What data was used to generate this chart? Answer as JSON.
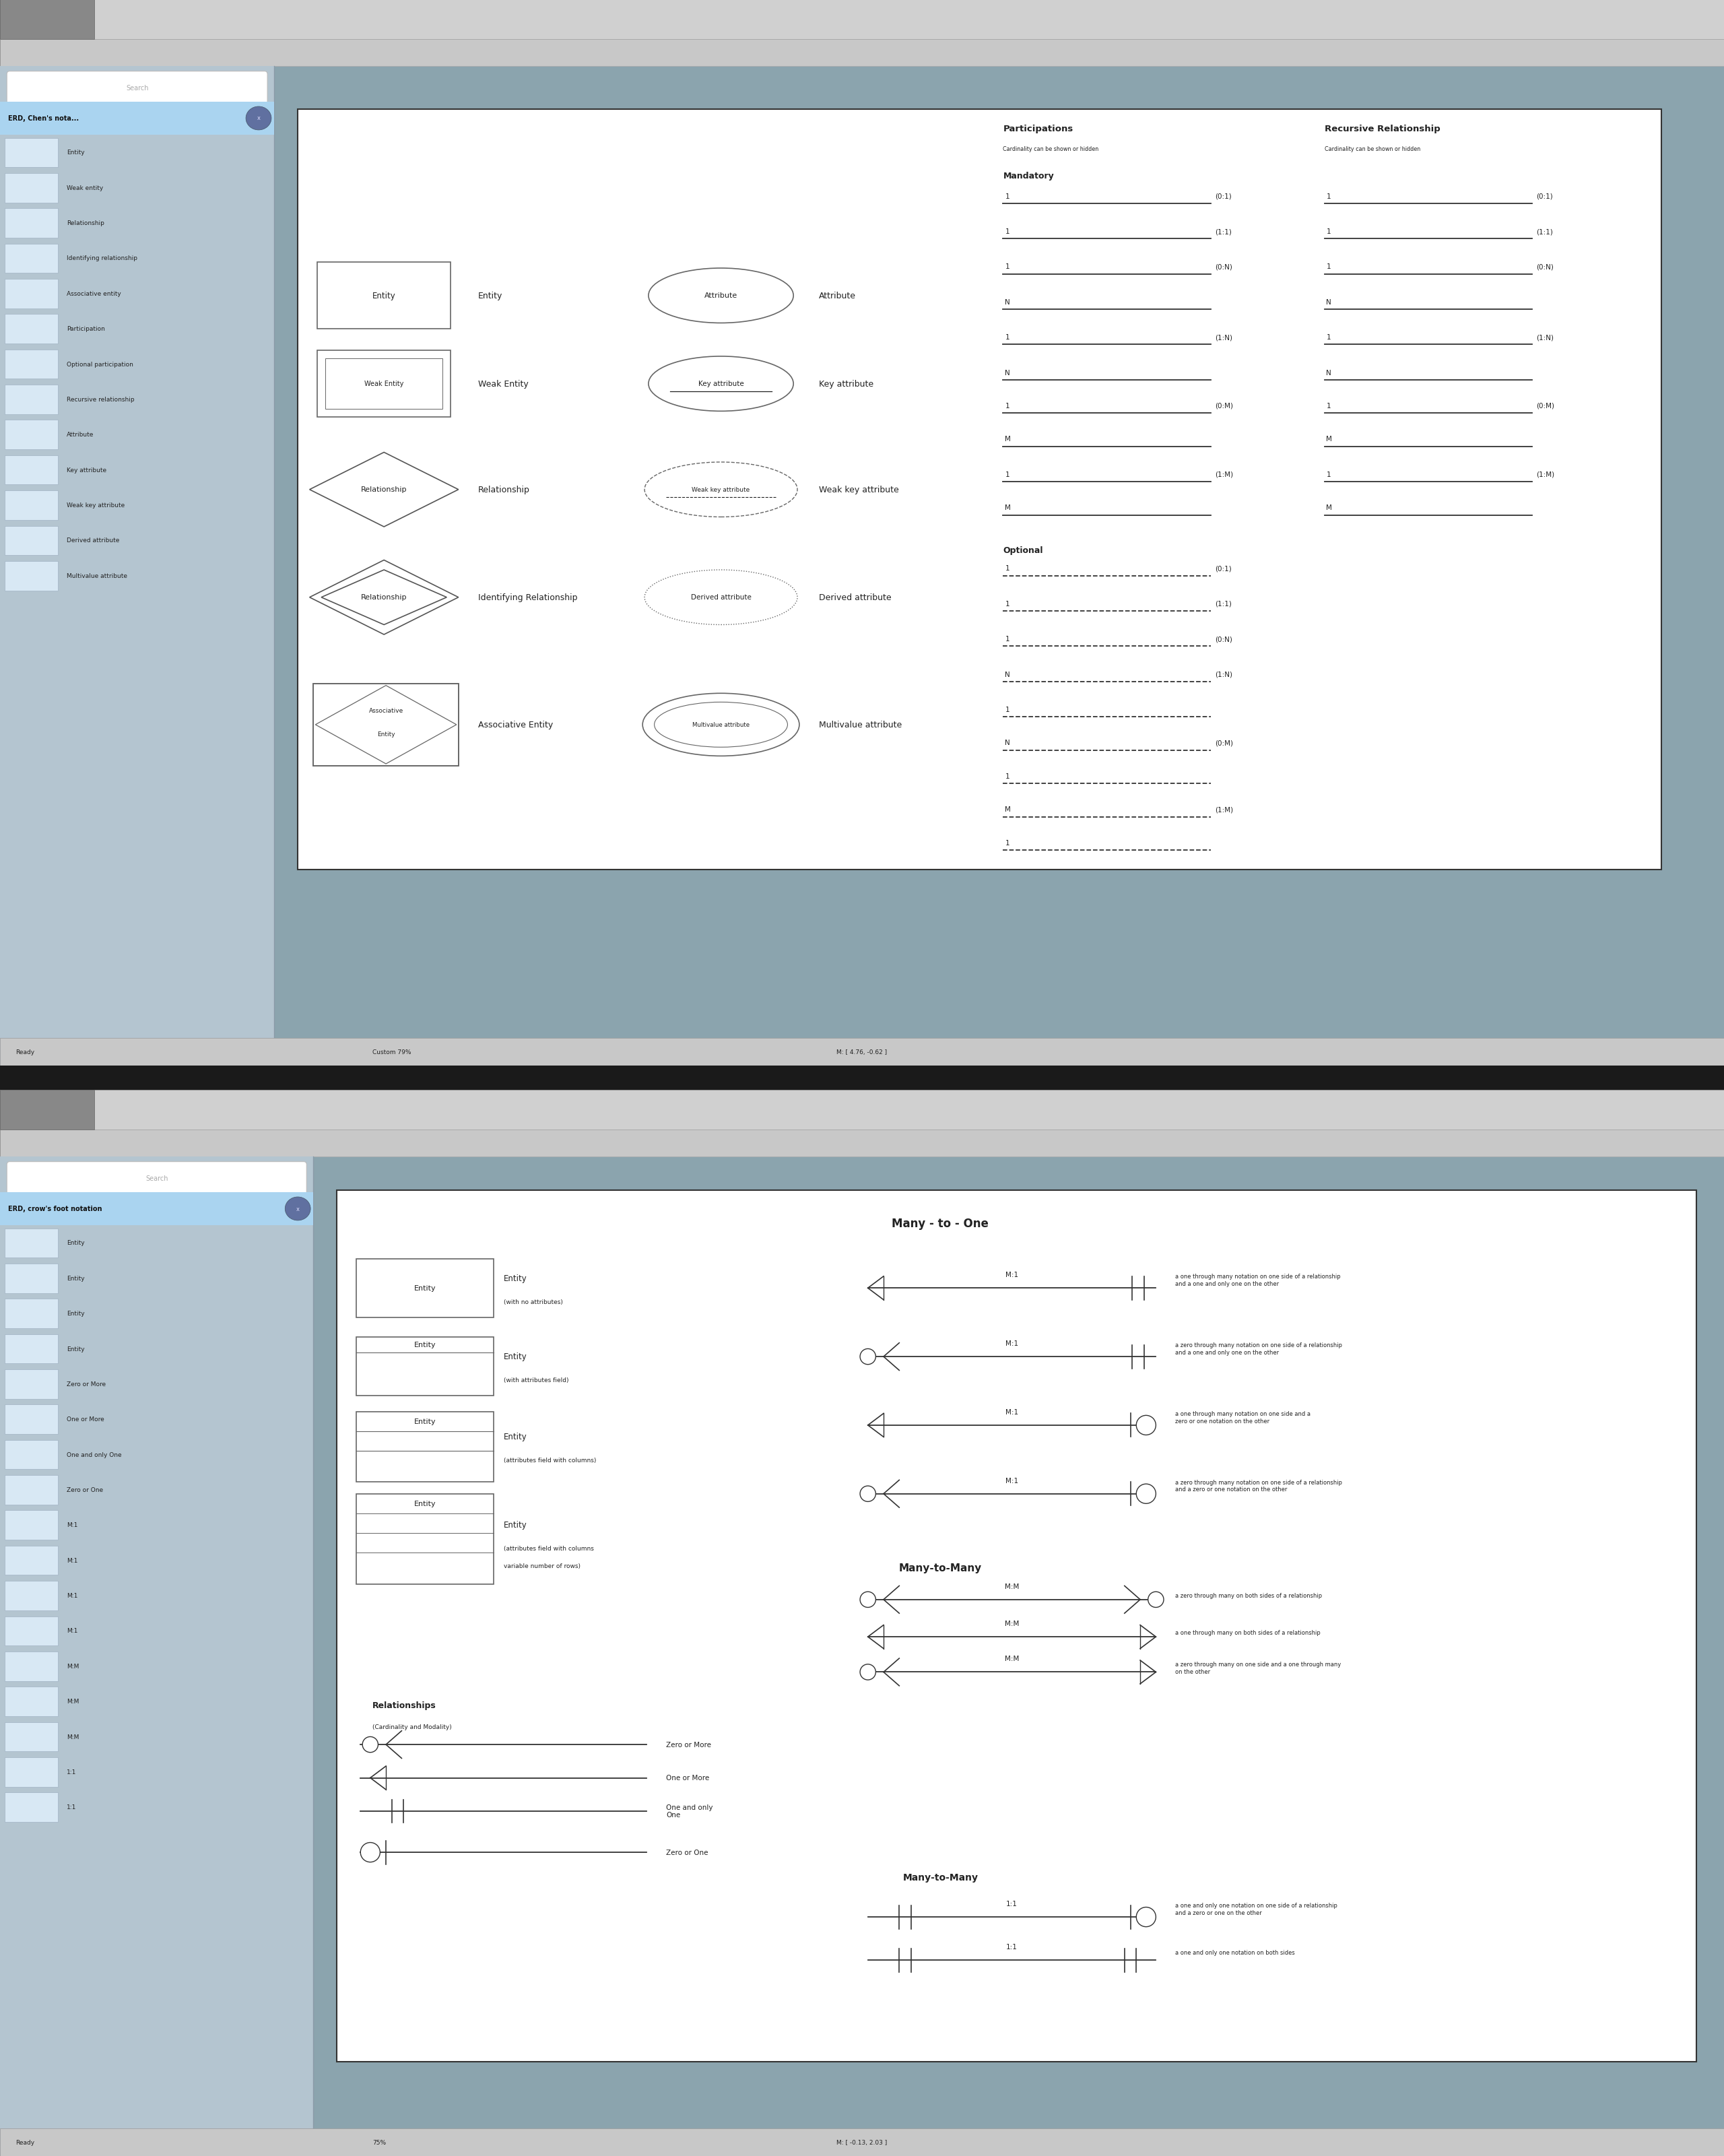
{
  "bg_toolbar": "#cdcdcd",
  "bg_sidebar": "#b4c5d0",
  "bg_canvas": "#8ba4ae",
  "bg_white": "#ffffff",
  "text_dark": "#222222",
  "blue_header": "#aad4f0",
  "panel1_header": "ERD, Chen's nota...",
  "panel2_header": "ERD, crow's foot notation",
  "search_text": "Search",
  "sidebar1_items": [
    "Entity",
    "Weak entity",
    "Relationship",
    "Identifying relationship",
    "Associative entity",
    "Participation",
    "Optional participation",
    "Recursive relationship",
    "Attribute",
    "Key attribute",
    "Weak key attribute",
    "Derived attribute",
    "Multivalue attribute"
  ],
  "sidebar2_items": [
    "Entity",
    "Entity",
    "Entity",
    "Entity",
    "Zero or More",
    "One or More",
    "One and only One",
    "Zero or One",
    "M:1",
    "M:1",
    "M:1",
    "M:1",
    "M:M",
    "M:M",
    "M:M",
    "1:1",
    "1:1"
  ],
  "chen_part_title": "Participations",
  "chen_part_sub": "Cardinality can be shown or hidden",
  "chen_rec_title": "Recursive Relationship",
  "chen_rec_sub": "Cardinality can be shown or hidden",
  "chen_mandatory": "Mandatory",
  "chen_optional": "Optional",
  "crow_main_title": "Many - to - One",
  "crow_mm_title": "Many-to-Many",
  "crow_mm_title2": "Many-to-Many",
  "crow_rel_label": "Relationships",
  "crow_rel_sub": "(Cardinality and Modality)",
  "crow_zero_more": "Zero or More",
  "crow_one_more": "One or More",
  "crow_one_one": "One and only\nOne",
  "crow_zero_one": "Zero or One",
  "status1_ready": "Ready",
  "status1_zoom": "Custom 79%",
  "status1_coords": "M: [ 4.76, -0.62 ]",
  "status2_ready": "Ready",
  "status2_zoom": "75%",
  "status2_coords": "M: [ -0.13, 2.03 ]",
  "mand_left": [
    "1",
    "1",
    "1",
    "N",
    "1",
    "N",
    "1",
    "M",
    "1",
    "M"
  ],
  "mand_right": [
    "(0:1)",
    "(1:1)",
    "(0:N)",
    "",
    "(1:N)",
    "",
    "(0:M)",
    "",
    "(1:M)",
    ""
  ],
  "opt_left": [
    "1",
    "1",
    "1",
    "N",
    "1",
    "N",
    "1",
    "M",
    "1"
  ],
  "opt_right": [
    "(0:1)",
    "(1:1)",
    "(0:N)",
    "(1:N)",
    "",
    "(0:M)",
    "",
    "(1:M)",
    ""
  ],
  "m1_labels": [
    "M:1",
    "M:1",
    "M:1",
    "M:1"
  ],
  "m1_desc": [
    "a one through many notation on one side of a relationship\nand a one and only one on the other",
    "a zero through many notation on one side of a relationship\nand a one and only one on the other",
    "a one through many notation on one side and a\nzero or one notation on the other",
    "a zero through many notation on one side of a relationship\nand a zero or one notation on the other"
  ],
  "mm_labels": [
    "M:M",
    "M:M",
    "M:M"
  ],
  "mm_desc": [
    "a zero through many on both sides of a relationship",
    "a one through many on both sides of a relationship",
    "a zero through many on one side and a one through many\non the other"
  ],
  "one_labels": [
    "1:1",
    "1:1"
  ],
  "one_desc": [
    "a one and only one notation on one side of a relationship\nand a zero or one on the other",
    "a one and only one notation on both sides"
  ],
  "crow_entity_labels": [
    "Entity",
    "Entity",
    "Entity",
    "Entity"
  ],
  "crow_entity_subs": [
    "(with no attributes)",
    "(with attributes field)",
    "(attributes field with columns)",
    "(attributes field with columns and\nvariable number of rows)"
  ]
}
